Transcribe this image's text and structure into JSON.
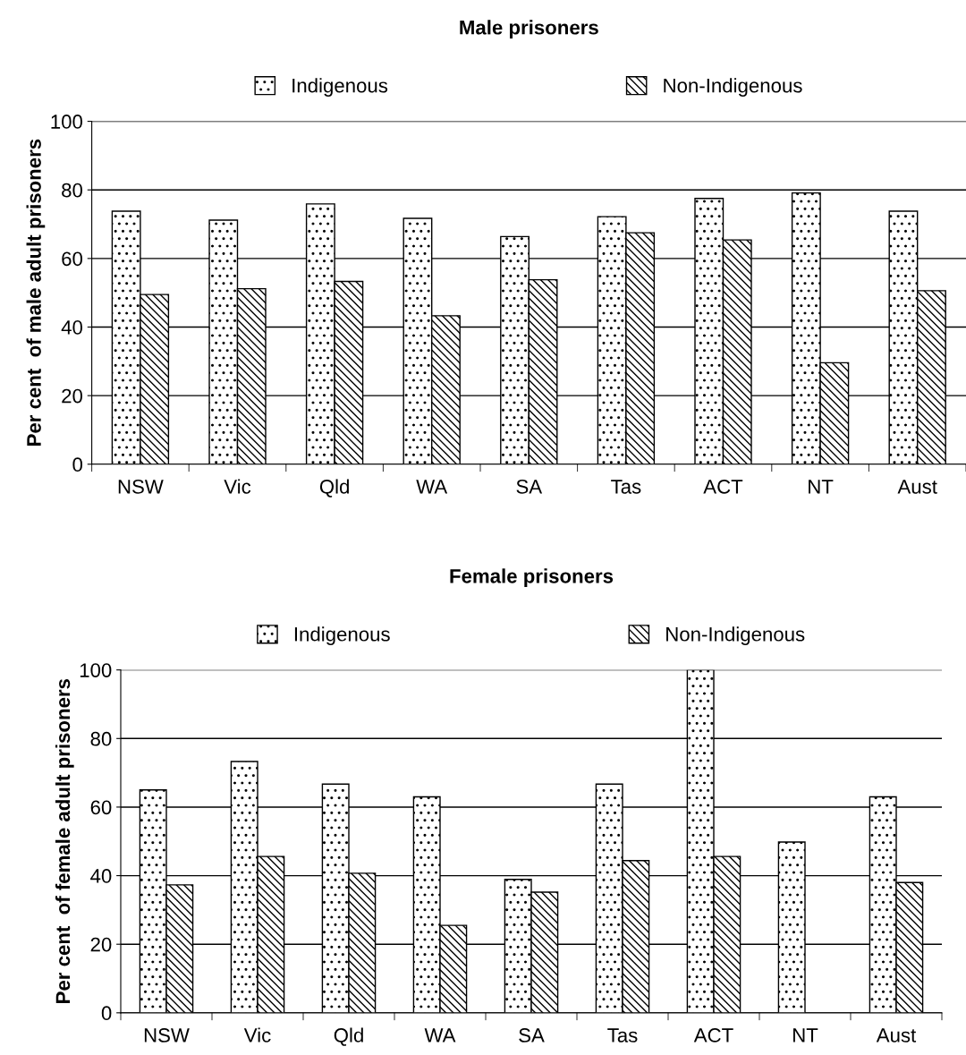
{
  "chart_data": [
    {
      "type": "bar",
      "title": "Male prisoners",
      "ylabel": "Per cent  of male adult prisoners",
      "categories": [
        "NSW",
        "Vic",
        "Qld",
        "WA",
        "SA",
        "Tas",
        "ACT",
        "NT",
        "Aust"
      ],
      "series": [
        {
          "name": "Indigenous",
          "color": "#000000",
          "values": [
            73.8,
            71.2,
            75.9,
            71.7,
            66.4,
            72.2,
            77.5,
            79.1,
            73.8
          ]
        },
        {
          "name": "Non-Indigenous",
          "color": "#000000",
          "values": [
            49.5,
            51.2,
            53.3,
            43.3,
            53.8,
            67.5,
            65.4,
            29.6,
            50.6
          ]
        }
      ],
      "ylim": [
        0,
        100
      ],
      "yticks": [
        0,
        20,
        40,
        60,
        80,
        100
      ],
      "grid": "y",
      "legend": "top"
    },
    {
      "type": "bar",
      "title": "Female prisoners",
      "ylabel": "Per cent  of female adult prisoners",
      "categories": [
        "NSW",
        "Vic",
        "Qld",
        "WA",
        "SA",
        "Tas",
        "ACT",
        "NT",
        "Aust"
      ],
      "series": [
        {
          "name": "Indigenous",
          "color": "#000000",
          "values": [
            65.0,
            73.3,
            66.7,
            63.0,
            38.9,
            66.7,
            100,
            49.8,
            63.0
          ]
        },
        {
          "name": "Non-Indigenous",
          "color": "#000000",
          "values": [
            37.3,
            45.6,
            40.7,
            25.5,
            35.2,
            44.4,
            45.6,
            null,
            38.0
          ]
        }
      ],
      "ylim": [
        0,
        100
      ],
      "yticks": [
        0,
        20,
        40,
        60,
        80,
        100
      ],
      "grid": "y",
      "legend": "top"
    }
  ]
}
